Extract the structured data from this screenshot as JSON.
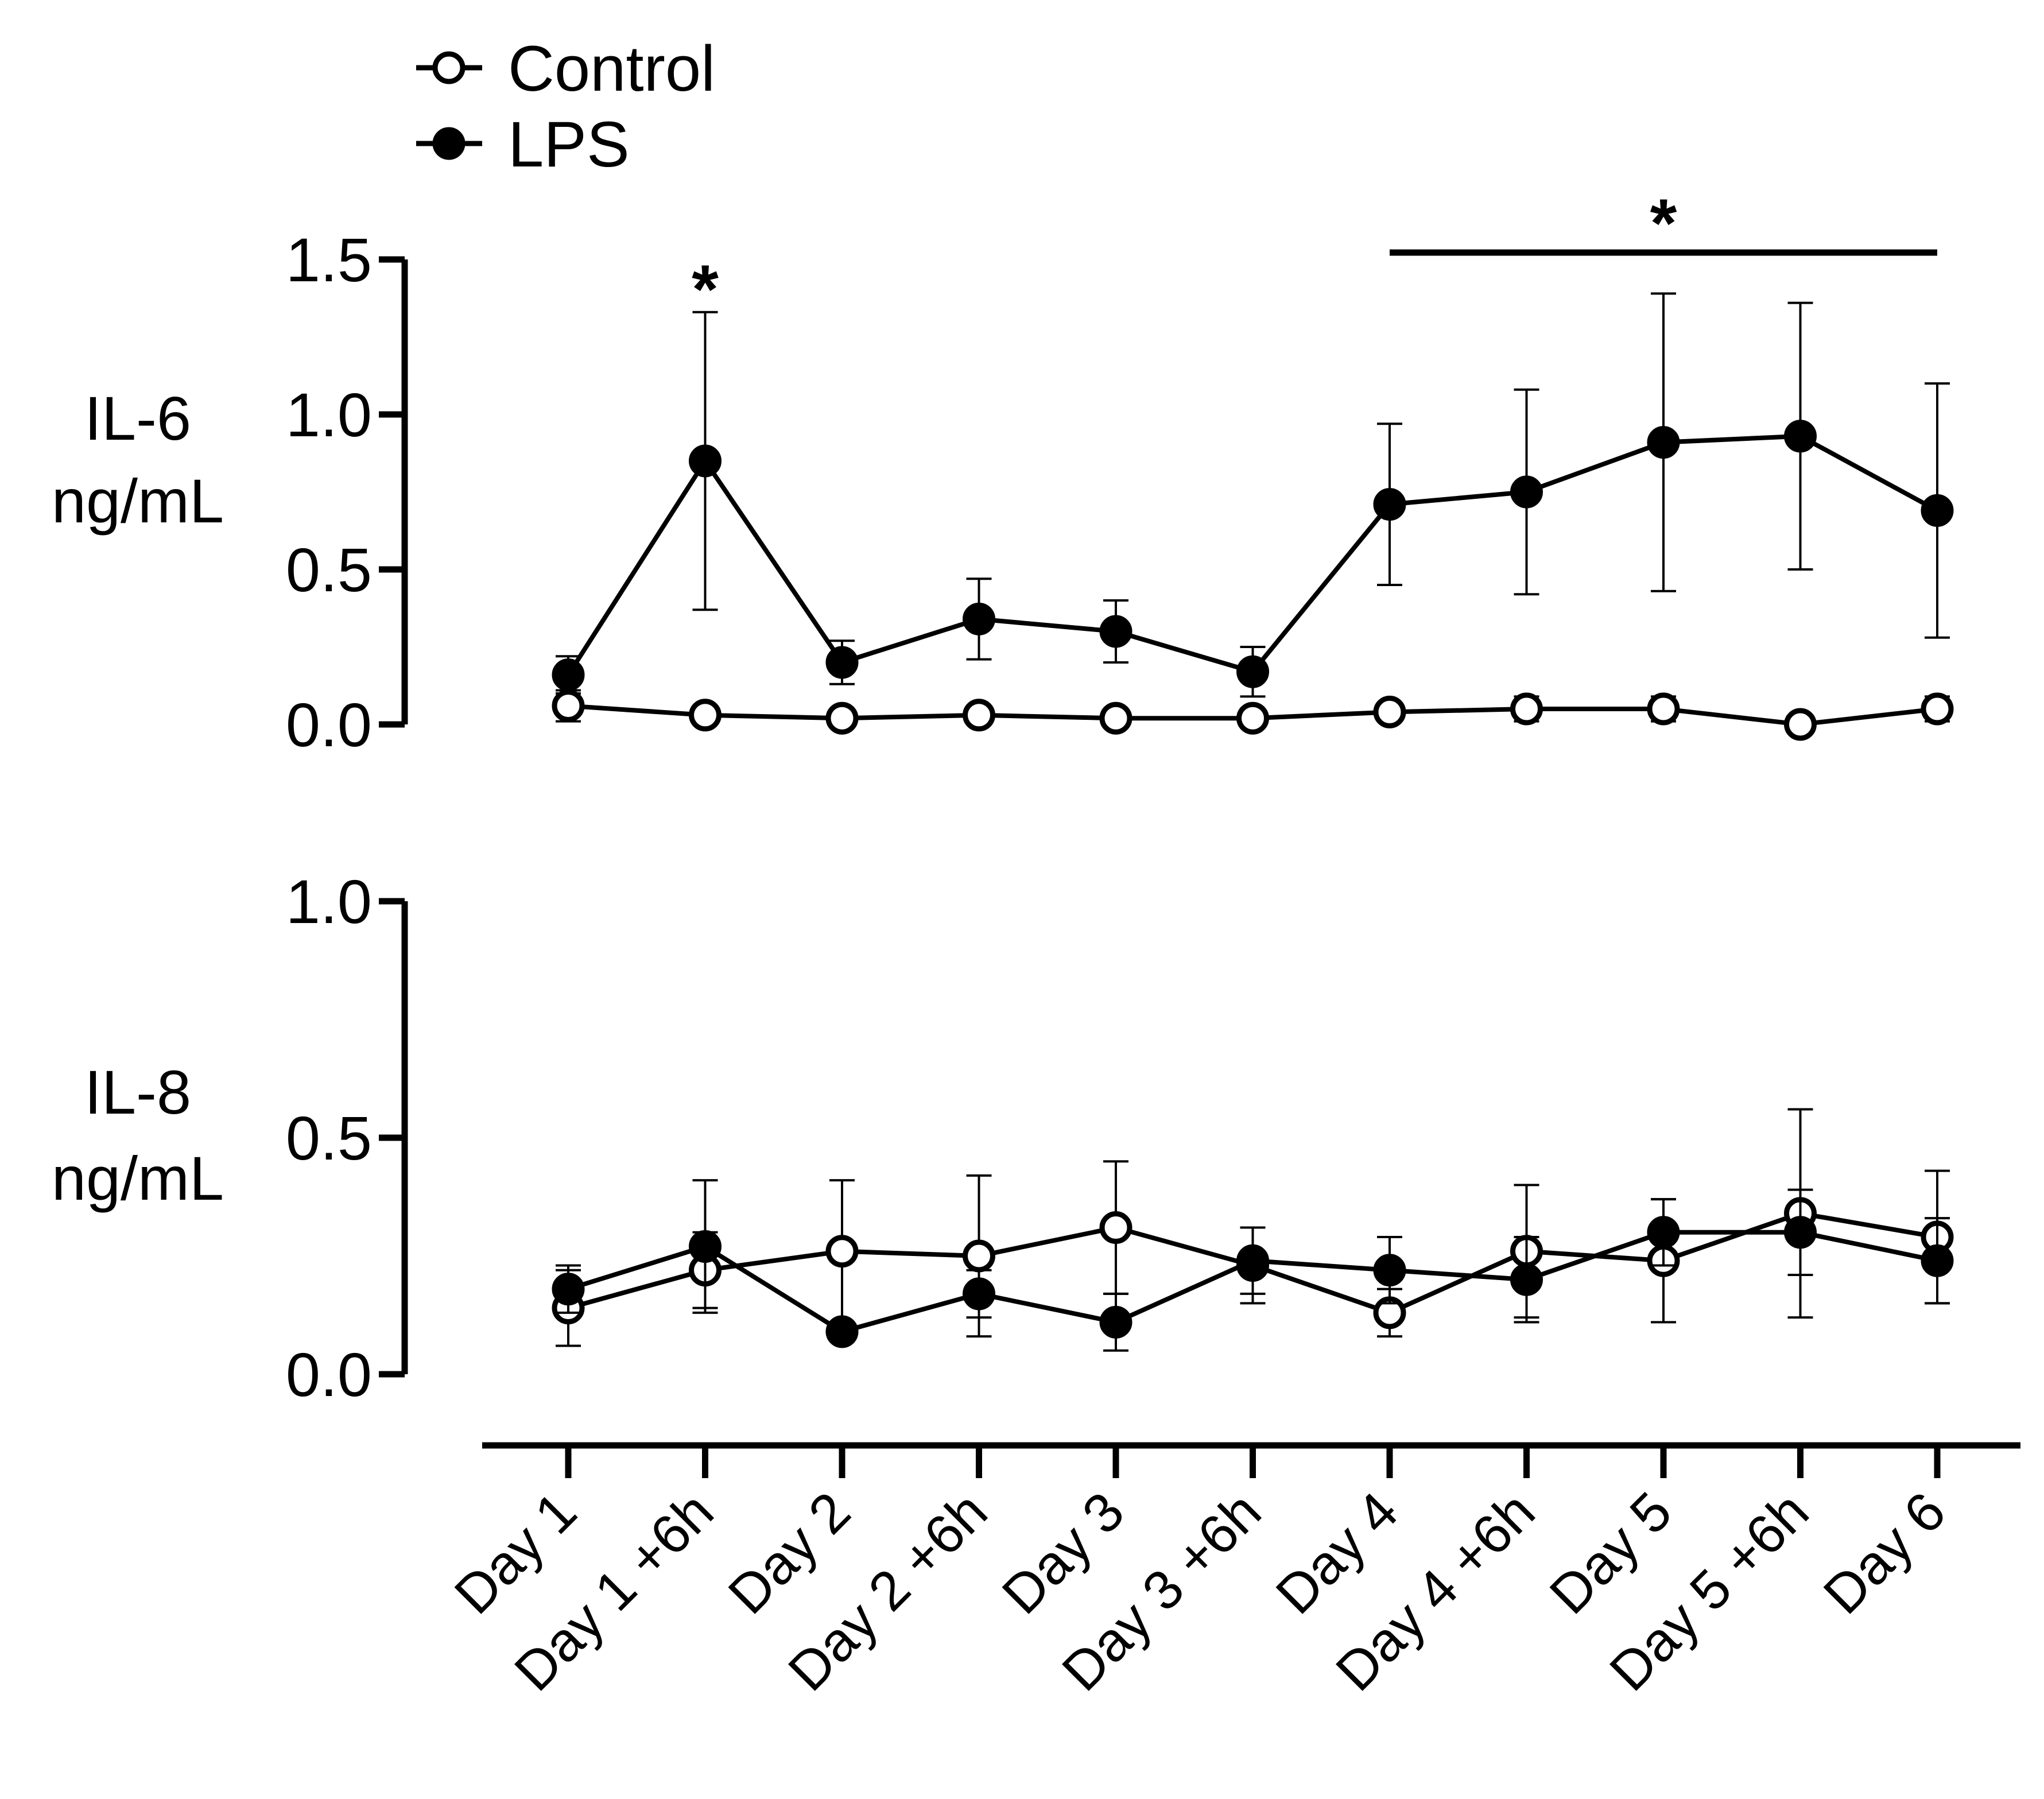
{
  "legend": [
    {
      "name": "Control",
      "marker": "open-circle"
    },
    {
      "name": "LPS",
      "marker": "filled-circle"
    }
  ],
  "colors": {
    "line": "#000000",
    "marker_open_fill": "#ffffff",
    "background": "#ffffff"
  },
  "chart_data": [
    {
      "type": "line",
      "panel": "top",
      "ylabel": [
        "IL-6",
        "ng/mL"
      ],
      "ylim": [
        0,
        1.5
      ],
      "yticks": [
        "0.0",
        "0.5",
        "1.0",
        "1.5"
      ],
      "categories": [
        "Day 1",
        "Day 1 +6h",
        "Day 2",
        "Day 2 +6h",
        "Day 3",
        "Day 3 +6h",
        "Day 4",
        "Day 4 +6h",
        "Day 5",
        "Day 5 +6h",
        "Day 6"
      ],
      "series": [
        {
          "name": "Control",
          "values": [
            0.06,
            0.03,
            0.02,
            0.03,
            0.02,
            0.02,
            0.04,
            0.05,
            0.05,
            0.0,
            0.05
          ],
          "error": [
            0.05,
            0.01,
            0.01,
            0.02,
            0.01,
            0.01,
            0.02,
            0.04,
            0.04,
            0.01,
            0.04
          ]
        },
        {
          "name": "LPS",
          "values": [
            0.16,
            0.85,
            0.2,
            0.34,
            0.3,
            0.17,
            0.71,
            0.75,
            0.91,
            0.93,
            0.69
          ],
          "error": [
            0.06,
            0.48,
            0.07,
            0.13,
            0.1,
            0.08,
            0.26,
            0.33,
            0.48,
            0.43,
            0.41
          ]
        }
      ],
      "annotations": [
        {
          "text": "*",
          "category": "Day 1 +6h"
        },
        {
          "text": "*",
          "bar_from": "Day 4",
          "bar_to": "Day 6"
        }
      ]
    },
    {
      "type": "line",
      "panel": "bottom",
      "ylabel": [
        "IL-8",
        "ng/mL"
      ],
      "ylim": [
        0,
        1.0
      ],
      "yticks": [
        "0.0",
        "0.5",
        "1.0"
      ],
      "categories": [
        "Day 1",
        "Day 1 +6h",
        "Day 2",
        "Day 2 +6h",
        "Day 3",
        "Day 3 +6h",
        "Day 4",
        "Day 4 +6h",
        "Day 5",
        "Day 5 +6h",
        "Day 6"
      ],
      "series": [
        {
          "name": "Control",
          "values": [
            0.14,
            0.22,
            0.26,
            0.25,
            0.31,
            0.23,
            0.13,
            0.26,
            0.24,
            0.34,
            0.29
          ],
          "error": [
            0.08,
            0.08,
            0.15,
            0.17,
            0.14,
            0.08,
            0.05,
            0.14,
            0.13,
            0.22,
            0.14
          ]
        },
        {
          "name": "LPS",
          "values": [
            0.18,
            0.27,
            0.09,
            0.17,
            0.11,
            0.24,
            0.22,
            0.2,
            0.3,
            0.3,
            0.24
          ],
          "error": [
            0.05,
            0.14,
            0.02,
            0.05,
            0.06,
            0.07,
            0.07,
            0.09,
            0.07,
            0.09,
            0.09
          ]
        }
      ],
      "annotations": []
    }
  ]
}
